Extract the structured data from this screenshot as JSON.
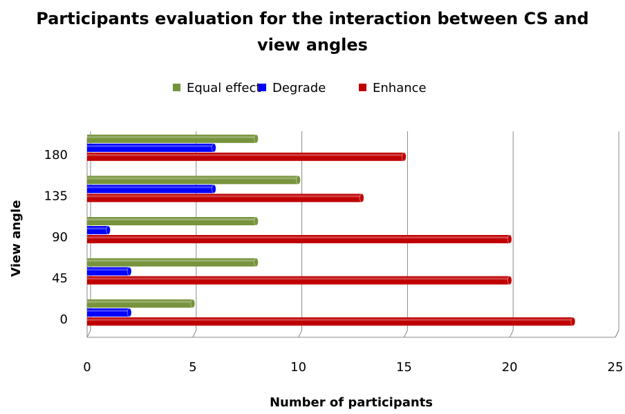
{
  "chart_data": {
    "type": "barh",
    "title": "Participants evaluation for the interaction between CS and view angles",
    "xlabel": "Number of participants",
    "ylabel": "View angle",
    "categories": [
      "0",
      "45",
      "90",
      "135",
      "180"
    ],
    "series": [
      {
        "name": "Equal effect",
        "color": "#77933c",
        "values": [
          5,
          8,
          8,
          10,
          8
        ]
      },
      {
        "name": "Degrade",
        "color": "#0000ff",
        "values": [
          2,
          2,
          1,
          6,
          6
        ]
      },
      {
        "name": "Enhance",
        "color": "#c00000",
        "values": [
          23,
          20,
          20,
          13,
          15
        ]
      }
    ],
    "xlim": [
      0,
      25
    ],
    "xticks": [
      0,
      5,
      10,
      15,
      20,
      25
    ],
    "grid": true,
    "legend": "top"
  }
}
